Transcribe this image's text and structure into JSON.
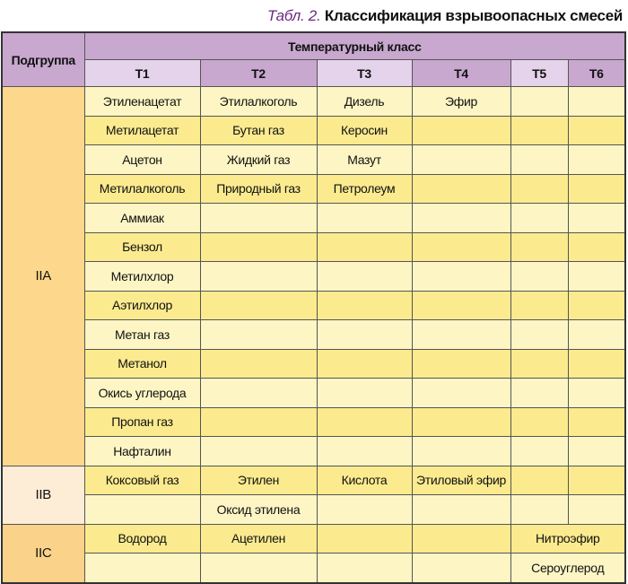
{
  "title": {
    "prefix": "Табл. 2.",
    "text": "Классификация взрывоопасных смесей"
  },
  "header": {
    "subgroup": "Подгруппа",
    "temp_class": "Температурный класс",
    "classes": [
      "T1",
      "T2",
      "T3",
      "T4",
      "T5",
      "T6"
    ]
  },
  "colors": {
    "header_dark": "#c8a8cf",
    "header_light": "#e4d3ea",
    "row_yellow": "#fbeb8e",
    "row_light": "#fdf6c4",
    "title_accent": "#6a2a82"
  },
  "groups": [
    {
      "name": "IIA",
      "rows": [
        [
          "Этиленацетат",
          "Этилалкоголь",
          "Дизель",
          "Эфир",
          "",
          ""
        ],
        [
          "Метилацетат",
          "Бутан газ",
          "Керосин",
          "",
          "",
          ""
        ],
        [
          "Ацетон",
          "Жидкий газ",
          "Мазут",
          "",
          "",
          ""
        ],
        [
          "Метилалкоголь",
          "Природный газ",
          "Петролеум",
          "",
          "",
          ""
        ],
        [
          "Аммиак",
          "",
          "",
          "",
          "",
          ""
        ],
        [
          "Бензол",
          "",
          "",
          "",
          "",
          ""
        ],
        [
          "Метилхлор",
          "",
          "",
          "",
          "",
          ""
        ],
        [
          "Аэтилхлор",
          "",
          "",
          "",
          "",
          ""
        ],
        [
          "Метан газ",
          "",
          "",
          "",
          "",
          ""
        ],
        [
          "Метанол",
          "",
          "",
          "",
          "",
          ""
        ],
        [
          "Окись углерода",
          "",
          "",
          "",
          "",
          ""
        ],
        [
          "Пропан газ",
          "",
          "",
          "",
          "",
          ""
        ],
        [
          "Нафталин",
          "",
          "",
          "",
          "",
          ""
        ]
      ]
    },
    {
      "name": "IIB",
      "rows": [
        [
          "Коксовый газ",
          "Этилен",
          "Кислота",
          "Этиловый эфир",
          "",
          ""
        ],
        [
          "",
          "Оксид этилена",
          "",
          "",
          "",
          ""
        ]
      ]
    },
    {
      "name": "IIC",
      "merge_t5_t6": true,
      "rows": [
        [
          "Водород",
          "Ацетилен",
          "",
          "",
          "Нитроэфир"
        ],
        [
          "",
          "",
          "",
          "",
          "Сероуглерод"
        ]
      ]
    }
  ]
}
